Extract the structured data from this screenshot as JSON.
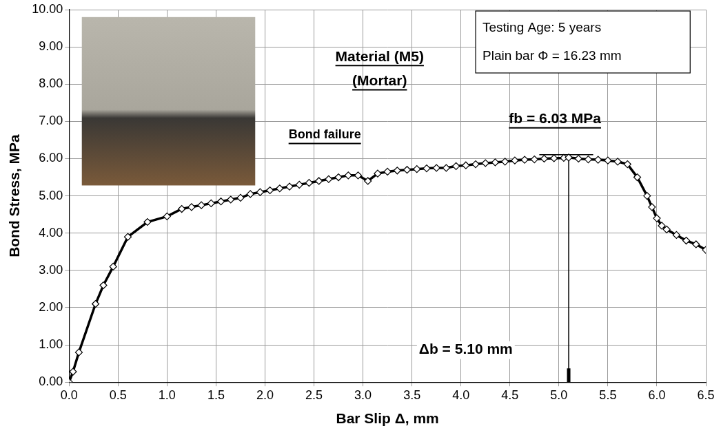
{
  "chart_data": {
    "type": "line",
    "title": "Material (M5)",
    "subtitle": "(Mortar)",
    "x_label": "Bar Slip Δ, mm",
    "y_label": "Bond Stress, MPa",
    "annotations": {
      "failure": "Bond failure",
      "peak_stress": "fb = 6.03 MPa",
      "peak_slip": "Δb = 5.10 mm",
      "info_box": [
        "Testing Age: 5 years",
        "Plain bar Φ = 16.23 mm"
      ]
    },
    "peak": {
      "x": 5.1,
      "y": 6.03
    },
    "x": [
      0,
      0.04,
      0.1,
      0.27,
      0.35,
      0.45,
      0.6,
      0.8,
      1.0,
      1.15,
      1.25,
      1.35,
      1.45,
      1.55,
      1.65,
      1.75,
      1.85,
      1.95,
      2.05,
      2.15,
      2.25,
      2.35,
      2.45,
      2.55,
      2.65,
      2.75,
      2.85,
      2.95,
      3.05,
      3.15,
      3.25,
      3.35,
      3.45,
      3.55,
      3.65,
      3.75,
      3.85,
      3.95,
      4.05,
      4.15,
      4.25,
      4.35,
      4.45,
      4.55,
      4.65,
      4.75,
      4.85,
      4.95,
      5.05,
      5.1,
      5.2,
      5.3,
      5.4,
      5.5,
      5.6,
      5.7,
      5.8,
      5.9,
      5.95,
      6.0,
      6.05,
      6.1,
      6.2,
      6.3,
      6.4,
      6.5
    ],
    "series": [
      {
        "name": "M5",
        "color": "#000000",
        "marker": "diamond",
        "line_style": "solid",
        "values": [
          0,
          0.28,
          0.8,
          2.1,
          2.6,
          3.1,
          3.9,
          4.3,
          4.45,
          4.65,
          4.7,
          4.75,
          4.8,
          4.85,
          4.9,
          4.95,
          5.05,
          5.1,
          5.15,
          5.2,
          5.25,
          5.3,
          5.35,
          5.4,
          5.45,
          5.5,
          5.55,
          5.55,
          5.4,
          5.6,
          5.65,
          5.68,
          5.7,
          5.72,
          5.74,
          5.75,
          5.75,
          5.8,
          5.82,
          5.85,
          5.88,
          5.9,
          5.92,
          5.95,
          5.97,
          5.98,
          6.0,
          6.01,
          6.02,
          6.03,
          6.0,
          5.98,
          5.97,
          5.95,
          5.92,
          5.85,
          5.5,
          5.0,
          4.7,
          4.4,
          4.2,
          4.1,
          3.95,
          3.8,
          3.7,
          3.55
        ]
      }
    ],
    "xlim": [
      0,
      6.5
    ],
    "xticks": [
      {
        "value": 0,
        "label": "0.0"
      },
      {
        "value": 0.5,
        "label": "0.5"
      },
      {
        "value": 1,
        "label": "1.0"
      },
      {
        "value": 1.5,
        "label": "1.5"
      },
      {
        "value": 2,
        "label": "2.0"
      },
      {
        "value": 2.5,
        "label": "2.5"
      },
      {
        "value": 3,
        "label": "3.0"
      },
      {
        "value": 3.5,
        "label": "3.5"
      },
      {
        "value": 4,
        "label": "4.0"
      },
      {
        "value": 4.5,
        "label": "4.5"
      },
      {
        "value": 5,
        "label": "5.0"
      },
      {
        "value": 5.5,
        "label": "5.5"
      },
      {
        "value": 6,
        "label": "6.0"
      },
      {
        "value": 6.5,
        "label": "6.5"
      }
    ],
    "ylim": [
      0,
      10
    ],
    "yticks": [
      {
        "value": 0,
        "label": "0.00"
      },
      {
        "value": 1,
        "label": "1.00"
      },
      {
        "value": 2,
        "label": "2.00"
      },
      {
        "value": 3,
        "label": "3.00"
      },
      {
        "value": 4,
        "label": "4.00"
      },
      {
        "value": 5,
        "label": "5.00"
      },
      {
        "value": 6,
        "label": "6.00"
      },
      {
        "value": 7,
        "label": "7.00"
      },
      {
        "value": 8,
        "label": "8.00"
      },
      {
        "value": 9,
        "label": "9.00"
      },
      {
        "value": 10,
        "label": "10.00"
      }
    ],
    "grid": true,
    "legend": false
  }
}
